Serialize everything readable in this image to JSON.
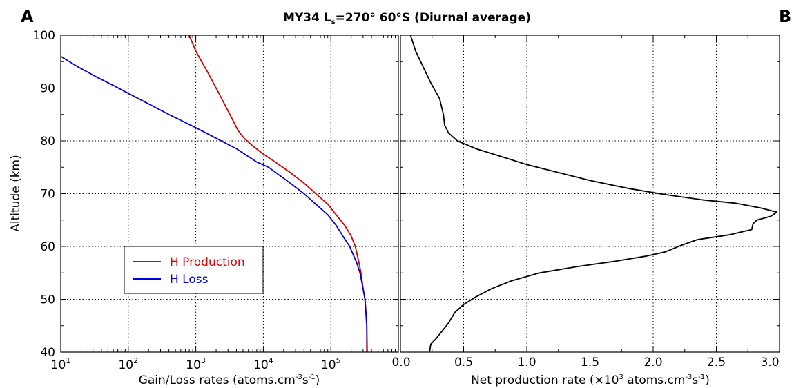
{
  "figure": {
    "title_prefix": "MY34   L",
    "title_sub": "s",
    "title_suffix": "=270°   60°S   (Diurnal average)",
    "panel_a": "A",
    "panel_b": "B"
  },
  "chart_data": [
    {
      "type": "line",
      "panel": "A",
      "xlabel_prefix": "Gain/Loss rates (atoms.cm",
      "xlabel_sup1": "-3",
      "xlabel_mid": "s",
      "xlabel_sup2": "-1",
      "xlabel_suffix": ")",
      "ylabel": "Altitude (km)",
      "xscale": "log",
      "xlim": [
        10,
        1000000
      ],
      "ylim": [
        40,
        100
      ],
      "x_ticks": [
        {
          "value": 10,
          "base": "10",
          "exp": "1"
        },
        {
          "value": 100,
          "base": "10",
          "exp": "2"
        },
        {
          "value": 1000,
          "base": "10",
          "exp": "3"
        },
        {
          "value": 10000,
          "base": "10",
          "exp": "4"
        },
        {
          "value": 100000,
          "base": "10",
          "exp": "5"
        }
      ],
      "y_ticks": [
        40,
        50,
        60,
        70,
        80,
        90,
        100
      ],
      "grid": true,
      "legend_position": "center-left",
      "series": [
        {
          "name": "H Production",
          "color": "#dd0000",
          "points": [
            [
              800,
              100
            ],
            [
              1000,
              97
            ],
            [
              1500,
              93
            ],
            [
              2200,
              89
            ],
            [
              3200,
              85
            ],
            [
              4200,
              82
            ],
            [
              5200,
              80.5
            ],
            [
              7000,
              79
            ],
            [
              10000,
              77.5
            ],
            [
              15000,
              76
            ],
            [
              25000,
              74
            ],
            [
              40000,
              72
            ],
            [
              60000,
              70
            ],
            [
              90000,
              68
            ],
            [
              120000,
              66
            ],
            [
              160000,
              64
            ],
            [
              200000,
              62
            ],
            [
              230000,
              60
            ],
            [
              260000,
              57
            ],
            [
              280000,
              55
            ],
            [
              300000,
              52
            ],
            [
              320000,
              50
            ],
            [
              335000,
              47
            ],
            [
              340000,
              45
            ],
            [
              340000,
              40
            ]
          ]
        },
        {
          "name": "H Loss",
          "color": "#0000dd",
          "points": [
            [
              10,
              96
            ],
            [
              18,
              94
            ],
            [
              35,
              92
            ],
            [
              60,
              90.5
            ],
            [
              100,
              89
            ],
            [
              200,
              87
            ],
            [
              400,
              85
            ],
            [
              1000,
              82.5
            ],
            [
              2000,
              80.5
            ],
            [
              4000,
              78.5
            ],
            [
              8000,
              76
            ],
            [
              12000,
              75
            ],
            [
              25000,
              72
            ],
            [
              40000,
              70
            ],
            [
              60000,
              68
            ],
            [
              90000,
              66
            ],
            [
              120000,
              64
            ],
            [
              150000,
              62
            ],
            [
              190000,
              60
            ],
            [
              240000,
              57
            ],
            [
              270000,
              55
            ],
            [
              300000,
              52
            ],
            [
              320000,
              50
            ],
            [
              340000,
              45
            ],
            [
              345000,
              40
            ]
          ]
        }
      ]
    },
    {
      "type": "line",
      "panel": "B",
      "xlabel_prefix": "Net production rate (×10",
      "xlabel_sup1": "3",
      "xlabel_mid": " atoms.cm",
      "xlabel_sup2": "-3",
      "xlabel_mid2": "s",
      "xlabel_sup3": "-1",
      "xlabel_suffix": ")",
      "xlim": [
        0,
        3.0
      ],
      "ylim": [
        40,
        100
      ],
      "x_ticks": [
        "0.0",
        "0.5",
        "1.0",
        "1.5",
        "2.0",
        "2.5",
        "3.0"
      ],
      "x_tick_values": [
        0,
        0.5,
        1.0,
        1.5,
        2.0,
        2.5,
        3.0
      ],
      "grid": true,
      "series": [
        {
          "color": "#000000",
          "points": [
            [
              0.08,
              100
            ],
            [
              0.12,
              97
            ],
            [
              0.18,
              94
            ],
            [
              0.24,
              91
            ],
            [
              0.31,
              88
            ],
            [
              0.34,
              85
            ],
            [
              0.35,
              83
            ],
            [
              0.38,
              81.5
            ],
            [
              0.45,
              80
            ],
            [
              0.6,
              78.5
            ],
            [
              0.8,
              77
            ],
            [
              1.0,
              75.5
            ],
            [
              1.2,
              74.3
            ],
            [
              1.5,
              72.5
            ],
            [
              1.8,
              71
            ],
            [
              2.1,
              69.8
            ],
            [
              2.4,
              68.8
            ],
            [
              2.65,
              68.2
            ],
            [
              2.85,
              67.3
            ],
            [
              2.98,
              66.5
            ],
            [
              2.93,
              65.7
            ],
            [
              2.82,
              65
            ],
            [
              2.79,
              64.3
            ],
            [
              2.78,
              63.2
            ],
            [
              2.6,
              62.2
            ],
            [
              2.35,
              61.3
            ],
            [
              2.22,
              60.2
            ],
            [
              2.1,
              59
            ],
            [
              1.95,
              58.2
            ],
            [
              1.7,
              57.2
            ],
            [
              1.4,
              56.2
            ],
            [
              1.1,
              55
            ],
            [
              0.88,
              53.5
            ],
            [
              0.72,
              52
            ],
            [
              0.6,
              50.5
            ],
            [
              0.5,
              49
            ],
            [
              0.43,
              47.5
            ],
            [
              0.38,
              45.5
            ],
            [
              0.33,
              44
            ],
            [
              0.28,
              42.5
            ],
            [
              0.24,
              41.5
            ],
            [
              0.23,
              40
            ]
          ]
        }
      ]
    }
  ]
}
